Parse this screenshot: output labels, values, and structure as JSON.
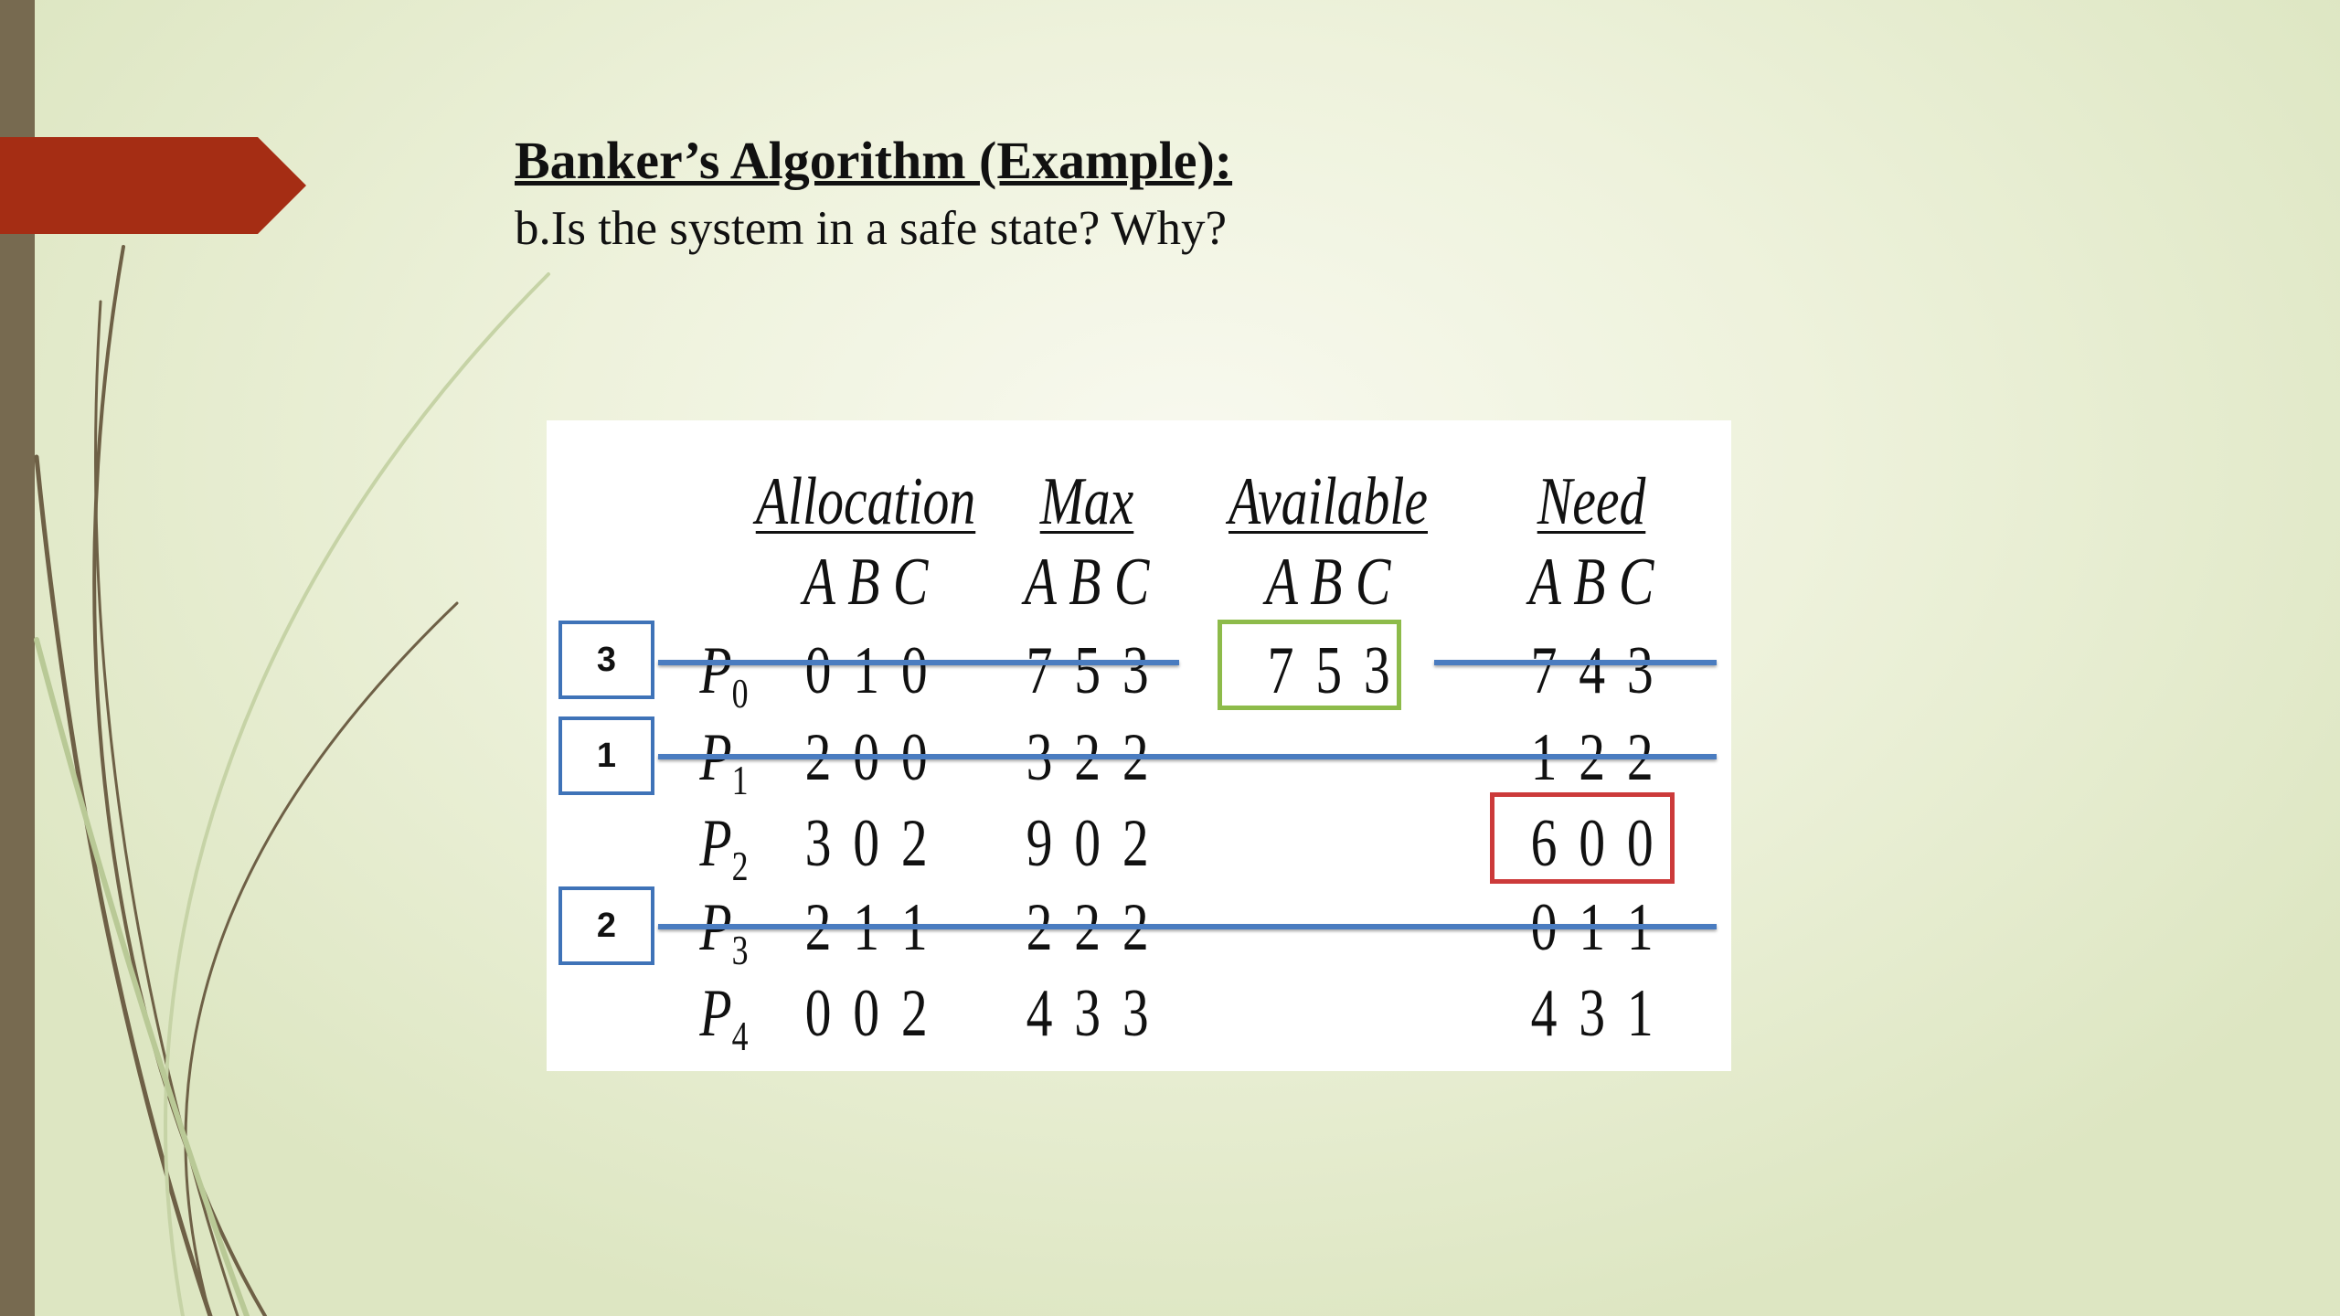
{
  "slide": {
    "title": "Banker’s Algorithm (Example):",
    "subtitle": "b.Is the system in a safe state? Why?",
    "accent_color": "#a52d14",
    "sidebar_color": "#776a50"
  },
  "table": {
    "headers": [
      "Allocation",
      "Max",
      "Available",
      "Need"
    ],
    "resources": "A B C",
    "available": "7 5 3",
    "rows": [
      {
        "process": "P",
        "index": "0",
        "allocation": "0 1 0",
        "max": "7 5 3",
        "need": "7 4 3",
        "order": "3"
      },
      {
        "process": "P",
        "index": "1",
        "allocation": "2 0 0",
        "max": "3 2 2",
        "need": "1 2 2",
        "order": "1"
      },
      {
        "process": "P",
        "index": "2",
        "allocation": "3 0 2",
        "max": "9 0 2",
        "need": "6 0 0",
        "order": ""
      },
      {
        "process": "P",
        "index": "3",
        "allocation": "2 1 1",
        "max": "2 2 2",
        "need": "0 1 1",
        "order": "2"
      },
      {
        "process": "P",
        "index": "4",
        "allocation": "0 0 2",
        "max": "4 3 3",
        "need": "4 3 1",
        "order": ""
      }
    ],
    "highlight_colors": {
      "available": "#8dbb4a",
      "blocked_need": "#cc3a3a",
      "strike": "#4a7cc0"
    }
  }
}
